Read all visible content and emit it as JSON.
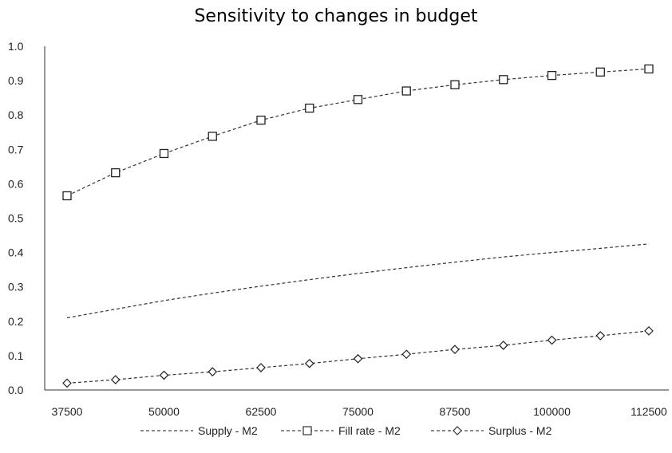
{
  "chart_data": {
    "type": "line",
    "title": "Sensitivity to changes in budget",
    "xlabel": "",
    "ylabel": "",
    "ylim": [
      0.0,
      1.0
    ],
    "yticks": [
      "0.0",
      "0.1",
      "0.2",
      "0.3",
      "0.4",
      "0.5",
      "0.6",
      "0.7",
      "0.8",
      "0.9",
      "1.0"
    ],
    "xticks": [
      "37500",
      "50000",
      "62500",
      "75000",
      "87500",
      "100000",
      "112500"
    ],
    "x": [
      37500,
      43750,
      50000,
      56250,
      62500,
      68750,
      75000,
      81250,
      87500,
      93750,
      100000,
      106250,
      112500
    ],
    "series": [
      {
        "name": "Supply - M2",
        "marker": "none",
        "values": [
          0.21,
          0.235,
          0.26,
          0.282,
          0.302,
          0.321,
          0.339,
          0.356,
          0.372,
          0.387,
          0.4,
          0.412,
          0.425
        ]
      },
      {
        "name": "Fill rate - M2",
        "marker": "square",
        "values": [
          0.565,
          0.632,
          0.688,
          0.738,
          0.785,
          0.82,
          0.845,
          0.87,
          0.888,
          0.903,
          0.915,
          0.925,
          0.934
        ]
      },
      {
        "name": "Surplus - M2",
        "marker": "diamond",
        "values": [
          0.02,
          0.03,
          0.043,
          0.053,
          0.065,
          0.077,
          0.091,
          0.104,
          0.118,
          0.13,
          0.145,
          0.158,
          0.172
        ]
      }
    ],
    "grid": false,
    "legend_position": "bottom"
  }
}
